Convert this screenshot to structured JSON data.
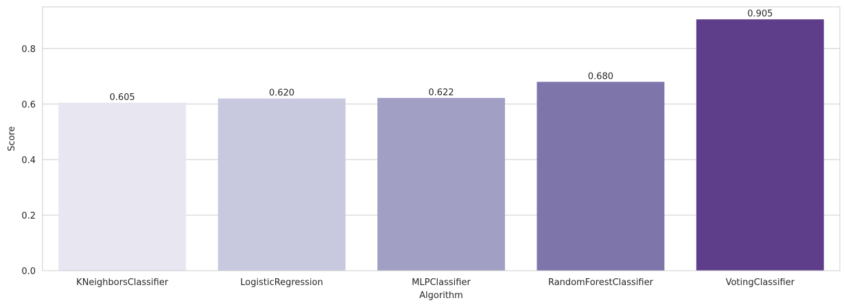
{
  "chart_data": {
    "type": "bar",
    "title": "",
    "xlabel": "Algorithm",
    "ylabel": "Score",
    "categories": [
      "KNeighborsClassifier",
      "LogisticRegression",
      "MLPClassifier",
      "RandomForestClassifier",
      "VotingClassifier"
    ],
    "values": [
      0.605,
      0.62,
      0.622,
      0.68,
      0.905
    ],
    "data_labels": [
      "0.605",
      "0.620",
      "0.622",
      "0.680",
      "0.905"
    ],
    "bar_colors": [
      "#e8e6f1",
      "#c8c9df",
      "#a29fc5",
      "#7e75ab",
      "#5e3d8a"
    ],
    "ylim": [
      0,
      0.95
    ],
    "yticks": [
      0.0,
      0.2,
      0.4,
      0.6,
      0.8
    ],
    "ytick_labels": [
      "0.0",
      "0.2",
      "0.4",
      "0.6",
      "0.8"
    ],
    "grid": "horizontal",
    "grid_color": "#cccccc",
    "frame_color": "#cccccc"
  }
}
